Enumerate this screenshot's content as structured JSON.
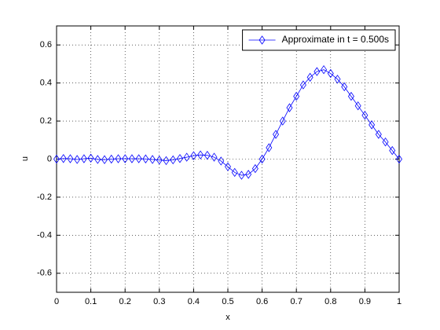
{
  "chart_data": {
    "type": "line",
    "xlabel": "x",
    "ylabel": "u",
    "x": [
      0,
      0.02,
      0.04,
      0.06,
      0.08,
      0.1,
      0.12,
      0.14,
      0.16,
      0.18,
      0.2,
      0.22,
      0.24,
      0.26,
      0.28,
      0.3,
      0.32,
      0.34,
      0.36,
      0.38,
      0.4,
      0.42,
      0.44,
      0.46,
      0.48,
      0.5,
      0.52,
      0.54,
      0.56,
      0.58,
      0.6,
      0.62,
      0.64,
      0.66,
      0.68,
      0.7,
      0.72,
      0.74,
      0.76,
      0.78,
      0.8,
      0.82,
      0.84,
      0.86,
      0.88,
      0.9,
      0.92,
      0.94,
      0.96,
      0.98,
      1
    ],
    "series": [
      {
        "name": "Approximate in t = 0.500s",
        "color": "#0000ff",
        "marker": "diamond",
        "values": [
          0,
          0.003,
          0.002,
          -0.002,
          0.002,
          0.005,
          -0.002,
          -0.003,
          0,
          0.002,
          0.002,
          0.002,
          0.002,
          0.001,
          -0.002,
          -0.005,
          -0.008,
          -0.004,
          0.003,
          0.01,
          0.018,
          0.022,
          0.02,
          0.01,
          -0.01,
          -0.04,
          -0.07,
          -0.085,
          -0.08,
          -0.05,
          0,
          0.06,
          0.13,
          0.2,
          0.27,
          0.33,
          0.39,
          0.43,
          0.46,
          0.47,
          0.45,
          0.42,
          0.38,
          0.33,
          0.28,
          0.23,
          0.18,
          0.13,
          0.09,
          0.045,
          0
        ]
      }
    ],
    "xlim": [
      0,
      1
    ],
    "xticks": [
      0,
      0.1,
      0.2,
      0.3,
      0.4,
      0.5,
      0.6,
      0.7,
      0.8,
      0.9,
      1
    ],
    "ylim": [
      -0.7,
      0.7
    ],
    "yticks": [
      -0.6,
      -0.4,
      -0.2,
      0,
      0.2,
      0.4,
      0.6
    ],
    "grid": true,
    "legend": "northeast"
  }
}
